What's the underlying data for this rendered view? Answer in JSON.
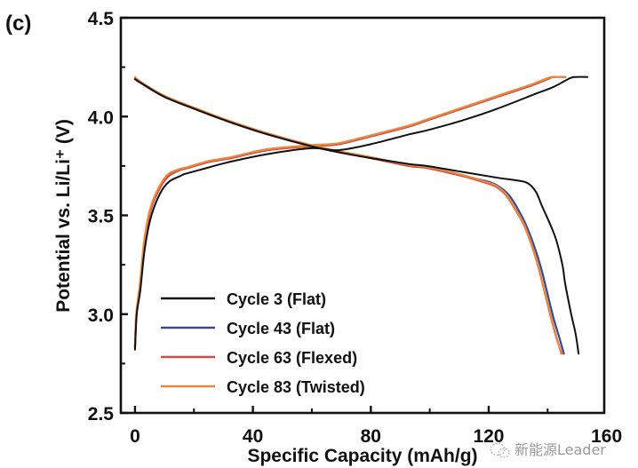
{
  "chart_data": {
    "type": "line",
    "panel_label": "(c)",
    "title": "",
    "xlabel": "Specific Capacity (mAh/g)",
    "ylabel": "Potential vs. Li/Li⁺ (V)",
    "xlim": [
      -4.8,
      159.2
    ],
    "ylim": [
      2.5,
      4.5
    ],
    "xticks": [
      0,
      40,
      80,
      120,
      160
    ],
    "xticks_minor": [
      20,
      60,
      100,
      140
    ],
    "yticks": [
      "2.5",
      "3.0",
      "3.5",
      "4.0",
      "4.5"
    ],
    "yticks_values": [
      2.5,
      3.0,
      3.5,
      4.0,
      4.5
    ],
    "yticks_minor": [
      2.75,
      3.25,
      3.75,
      4.25
    ],
    "grid": false,
    "legend_position": "bottom-left",
    "series": [
      {
        "name": "Cycle 3 (Flat)",
        "color": "#111111",
        "charge": [
          [
            0,
            2.82
          ],
          [
            0.6,
            3.0
          ],
          [
            1.8,
            3.12
          ],
          [
            3.3,
            3.33
          ],
          [
            5.4,
            3.49
          ],
          [
            8.5,
            3.61
          ],
          [
            11.5,
            3.67
          ],
          [
            15.5,
            3.7
          ],
          [
            17,
            3.71
          ],
          [
            22,
            3.73
          ],
          [
            32,
            3.77
          ],
          [
            45,
            3.81
          ],
          [
            60,
            3.84
          ],
          [
            69,
            3.83
          ],
          [
            80,
            3.86
          ],
          [
            93,
            3.91
          ],
          [
            99,
            3.93
          ],
          [
            111,
            3.98
          ],
          [
            123,
            4.04
          ],
          [
            135,
            4.11
          ],
          [
            142,
            4.15
          ],
          [
            147,
            4.19
          ],
          [
            149,
            4.2
          ],
          [
            153.5,
            4.2
          ]
        ],
        "discharge": [
          [
            0,
            4.19
          ],
          [
            2,
            4.17
          ],
          [
            10,
            4.1
          ],
          [
            20,
            4.04
          ],
          [
            32.6,
            3.97
          ],
          [
            45,
            3.91
          ],
          [
            59.8,
            3.85
          ],
          [
            69,
            3.82
          ],
          [
            80,
            3.79
          ],
          [
            93,
            3.76
          ],
          [
            99,
            3.75
          ],
          [
            111,
            3.72
          ],
          [
            123,
            3.69
          ],
          [
            128,
            3.68
          ],
          [
            133,
            3.665
          ],
          [
            136,
            3.62
          ],
          [
            138,
            3.55
          ],
          [
            141,
            3.45
          ],
          [
            143,
            3.37
          ],
          [
            145,
            3.25
          ],
          [
            146,
            3.15
          ],
          [
            148,
            3.0
          ],
          [
            149.5,
            2.9
          ],
          [
            150.5,
            2.8
          ]
        ]
      },
      {
        "name": "Cycle 43 (Flat)",
        "color": "#3b4a8c",
        "charge": [
          [
            0,
            2.83
          ],
          [
            0.5,
            3.0
          ],
          [
            1.8,
            3.15
          ],
          [
            3.3,
            3.37
          ],
          [
            5.4,
            3.53
          ],
          [
            8.5,
            3.64
          ],
          [
            11.5,
            3.7
          ],
          [
            15.4,
            3.73
          ],
          [
            18,
            3.74
          ],
          [
            25,
            3.77
          ],
          [
            32.6,
            3.79
          ],
          [
            45,
            3.83
          ],
          [
            59.8,
            3.85
          ],
          [
            69,
            3.86
          ],
          [
            80,
            3.9
          ],
          [
            93,
            3.95
          ],
          [
            99,
            3.98
          ],
          [
            111,
            4.04
          ],
          [
            123,
            4.1
          ],
          [
            135,
            4.16
          ],
          [
            140,
            4.19
          ],
          [
            142,
            4.2
          ],
          [
            146,
            4.2
          ]
        ],
        "discharge": [
          [
            0,
            4.19
          ],
          [
            2,
            4.17
          ],
          [
            10,
            4.1
          ],
          [
            20,
            4.04
          ],
          [
            32.6,
            3.97
          ],
          [
            45,
            3.91
          ],
          [
            59.8,
            3.85
          ],
          [
            69,
            3.82
          ],
          [
            80,
            3.79
          ],
          [
            93,
            3.75
          ],
          [
            99,
            3.74
          ],
          [
            111,
            3.7
          ],
          [
            120,
            3.67
          ],
          [
            124,
            3.64
          ],
          [
            127,
            3.6
          ],
          [
            130,
            3.53
          ],
          [
            133,
            3.44
          ],
          [
            136,
            3.32
          ],
          [
            138,
            3.22
          ],
          [
            140,
            3.1
          ],
          [
            142,
            2.98
          ],
          [
            144,
            2.88
          ],
          [
            145.5,
            2.8
          ]
        ]
      },
      {
        "name": "Cycle 63 (Flexed)",
        "color": "#d94a3f",
        "charge": [
          [
            0,
            2.83
          ],
          [
            0.5,
            3.0
          ],
          [
            1.8,
            3.15
          ],
          [
            3.3,
            3.37
          ],
          [
            5.4,
            3.53
          ],
          [
            8.5,
            3.64
          ],
          [
            11.5,
            3.7
          ],
          [
            15.4,
            3.73
          ],
          [
            18,
            3.74
          ],
          [
            25,
            3.77
          ],
          [
            32.6,
            3.79
          ],
          [
            45,
            3.83
          ],
          [
            59.8,
            3.85
          ],
          [
            69,
            3.86
          ],
          [
            80,
            3.9
          ],
          [
            93,
            3.95
          ],
          [
            99,
            3.98
          ],
          [
            111,
            4.04
          ],
          [
            123,
            4.1
          ],
          [
            135,
            4.16
          ],
          [
            140,
            4.19
          ],
          [
            142,
            4.2
          ],
          [
            146,
            4.2
          ]
        ],
        "discharge": [
          [
            0,
            4.19
          ],
          [
            2,
            4.17
          ],
          [
            10,
            4.1
          ],
          [
            20,
            4.04
          ],
          [
            32.6,
            3.97
          ],
          [
            45,
            3.91
          ],
          [
            59.8,
            3.85
          ],
          [
            69,
            3.82
          ],
          [
            80,
            3.79
          ],
          [
            93,
            3.75
          ],
          [
            99,
            3.74
          ],
          [
            111,
            3.7
          ],
          [
            120,
            3.66
          ],
          [
            123,
            3.64
          ],
          [
            126,
            3.6
          ],
          [
            129,
            3.53
          ],
          [
            132,
            3.45
          ],
          [
            135,
            3.33
          ],
          [
            137,
            3.23
          ],
          [
            139,
            3.11
          ],
          [
            141,
            2.99
          ],
          [
            143,
            2.88
          ],
          [
            144.8,
            2.8
          ]
        ]
      },
      {
        "name": "Cycle 83 (Twisted)",
        "color": "#e8893e",
        "charge": [
          [
            0,
            2.84
          ],
          [
            0.4,
            3.0
          ],
          [
            1.7,
            3.16
          ],
          [
            3.2,
            3.38
          ],
          [
            5.3,
            3.54
          ],
          [
            8.4,
            3.65
          ],
          [
            11.4,
            3.71
          ],
          [
            15.3,
            3.735
          ],
          [
            18,
            3.745
          ],
          [
            25,
            3.775
          ],
          [
            32.6,
            3.795
          ],
          [
            45,
            3.835
          ],
          [
            59.8,
            3.855
          ],
          [
            69,
            3.865
          ],
          [
            80,
            3.905
          ],
          [
            93,
            3.955
          ],
          [
            99,
            3.985
          ],
          [
            111,
            4.045
          ],
          [
            123,
            4.105
          ],
          [
            135,
            4.165
          ],
          [
            140,
            4.195
          ],
          [
            142,
            4.2
          ],
          [
            146,
            4.2
          ]
        ],
        "discharge": [
          [
            0,
            4.2
          ],
          [
            2,
            4.175
          ],
          [
            10,
            4.105
          ],
          [
            20,
            4.045
          ],
          [
            32.6,
            3.975
          ],
          [
            45,
            3.915
          ],
          [
            59.8,
            3.855
          ],
          [
            69,
            3.825
          ],
          [
            80,
            3.795
          ],
          [
            93,
            3.755
          ],
          [
            99,
            3.745
          ],
          [
            111,
            3.705
          ],
          [
            120,
            3.665
          ],
          [
            123,
            3.645
          ],
          [
            126,
            3.605
          ],
          [
            129,
            3.535
          ],
          [
            132,
            3.455
          ],
          [
            135,
            3.335
          ],
          [
            137,
            3.235
          ],
          [
            139,
            3.115
          ],
          [
            141,
            2.995
          ],
          [
            143,
            2.885
          ],
          [
            144.6,
            2.8
          ]
        ]
      }
    ]
  },
  "watermark": {
    "icon": "wechat-icon",
    "text": "新能源Leader"
  }
}
